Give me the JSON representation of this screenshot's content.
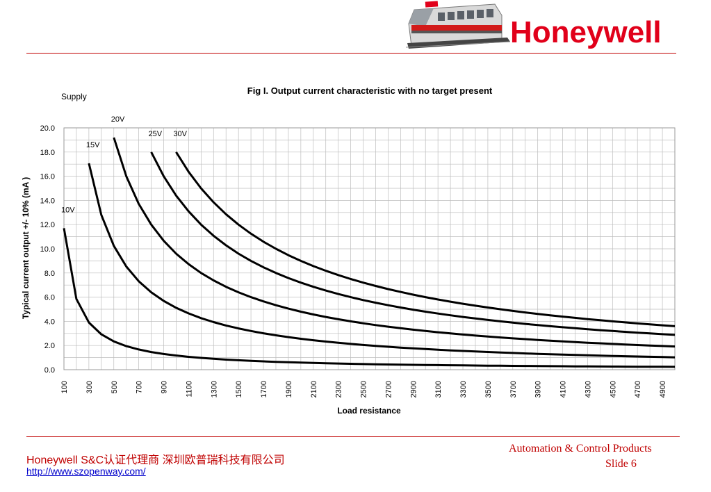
{
  "header": {
    "brand": "Honeywell",
    "logo_icon": "train-icon"
  },
  "chart_data": {
    "type": "line",
    "title": "Fig I.  Output current characteristic with no target present",
    "legend_title": "Supply",
    "xlabel": "Load resistance",
    "ylabel": "Typical current output +/- 10% (mA )",
    "xlim": [
      100,
      5000
    ],
    "ylim": [
      0,
      20
    ],
    "yticks": [
      "0.0",
      "2.0",
      "4.0",
      "6.0",
      "8.0",
      "10.0",
      "12.0",
      "14.0",
      "16.0",
      "18.0",
      "20.0"
    ],
    "xticks": [
      "100",
      "300",
      "500",
      "700",
      "900",
      "1100",
      "1300",
      "1500",
      "1700",
      "1900",
      "2100",
      "2300",
      "2500",
      "2700",
      "2900",
      "3100",
      "3300",
      "3500",
      "3700",
      "3900",
      "4100",
      "4300",
      "4500",
      "4700",
      "4900"
    ],
    "grid": true,
    "series": [
      {
        "name": "10V",
        "k": 1170,
        "x_start": 100
      },
      {
        "name": "15V",
        "k": 5120,
        "x_start": 300
      },
      {
        "name": "20V",
        "k": 9600,
        "x_start": 500
      },
      {
        "name": "25V",
        "k": 14400,
        "x_start": 800
      },
      {
        "name": "30V",
        "k": 18000,
        "x_start": 1000
      }
    ],
    "line_color": "#000000"
  },
  "footer": {
    "company": "Honeywell S&C认证代理商 深圳欧普瑞科技有限公司",
    "url": "http://www.szopenway.com/",
    "division": "Automation & Control Products",
    "slide": "Slide 6"
  }
}
